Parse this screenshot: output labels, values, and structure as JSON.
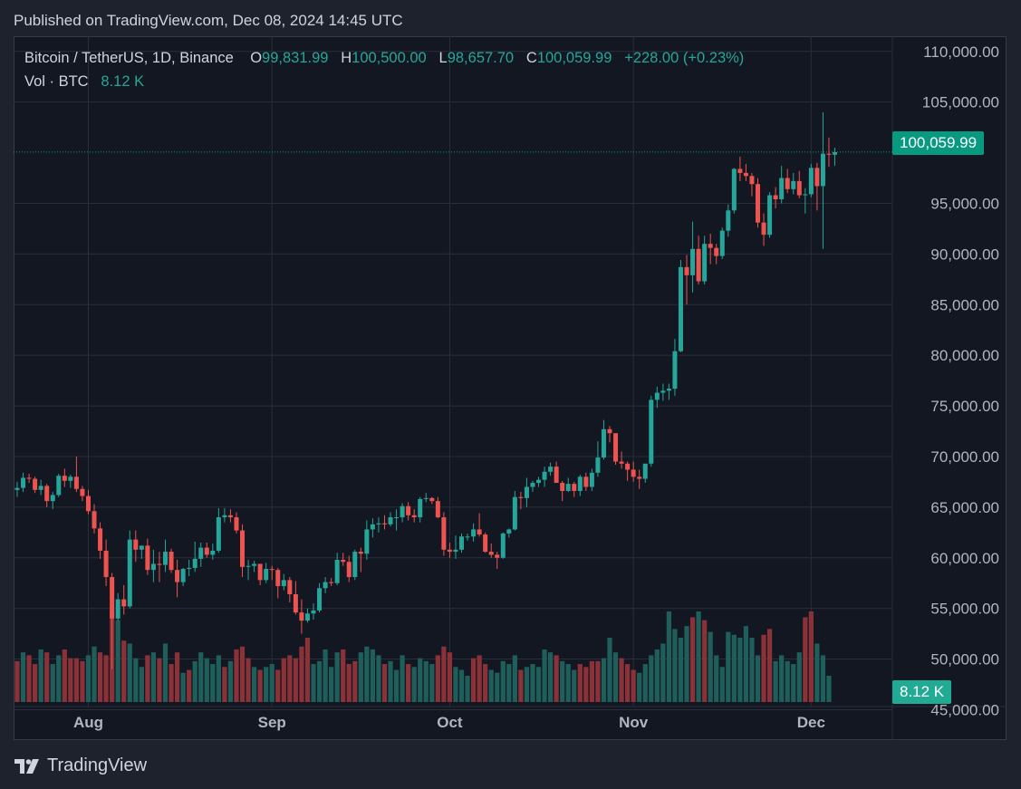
{
  "header": {
    "published": "Published on TradingView.com, Dec 08, 2024 14:45 UTC"
  },
  "legend": {
    "symbol": "Bitcoin / TetherUS, 1D, Binance",
    "o_label": "O",
    "o_value": "99,831.99",
    "h_label": "H",
    "h_value": "100,500.00",
    "l_label": "L",
    "l_value": "98,657.70",
    "c_label": "C",
    "c_value": "100,059.99",
    "change": "+228.00 (+0.23%)",
    "vol_label": "Vol · BTC",
    "vol_value": "8.12 K"
  },
  "tags": {
    "price": "100,059.99",
    "volume": "8.12 K"
  },
  "brand": {
    "name": "TradingView",
    "icon": "tradingview-logo-icon"
  },
  "colors": {
    "up": "#26a69a",
    "down": "#ef5350",
    "up_vol": "#1f5f5b",
    "down_vol": "#8b3238",
    "grid": "#2a2e39",
    "axis_text": "#b2b5be",
    "price_tag": "#089981",
    "background": "#131722"
  },
  "chart_data": {
    "type": "candlestick",
    "title": "Bitcoin / TetherUS, 1D, Binance",
    "ylim": [
      42000,
      111500
    ],
    "y_ticks": [
      {
        "value": 110000,
        "label": "110,000.00"
      },
      {
        "value": 105000,
        "label": "105,000.00"
      },
      {
        "value": 95000,
        "label": "95,000.00"
      },
      {
        "value": 90000,
        "label": "90,000.00"
      },
      {
        "value": 85000,
        "label": "85,000.00"
      },
      {
        "value": 80000,
        "label": "80,000.00"
      },
      {
        "value": 75000,
        "label": "75,000.00"
      },
      {
        "value": 70000,
        "label": "70,000.00"
      },
      {
        "value": 65000,
        "label": "65,000.00"
      },
      {
        "value": 60000,
        "label": "60,000.00"
      },
      {
        "value": 55000,
        "label": "55,000.00"
      },
      {
        "value": 50000,
        "label": "50,000.00"
      },
      {
        "value": 45000,
        "label": "45,000.00"
      }
    ],
    "x_ticks": [
      {
        "index": 12,
        "label": "Aug"
      },
      {
        "index": 43,
        "label": "Sep"
      },
      {
        "index": 73,
        "label": "Oct"
      },
      {
        "index": 104,
        "label": "Nov"
      },
      {
        "index": 134,
        "label": "Dec"
      }
    ],
    "last_price": 100059.99,
    "ohlc": [
      [
        66700,
        67500,
        66000,
        66900
      ],
      [
        66900,
        68400,
        66500,
        67900
      ],
      [
        67900,
        68300,
        67400,
        67800
      ],
      [
        67800,
        68000,
        66400,
        66700
      ],
      [
        66700,
        67700,
        66200,
        67100
      ],
      [
        67100,
        67300,
        65000,
        65600
      ],
      [
        65600,
        66500,
        64800,
        66200
      ],
      [
        66200,
        68300,
        66000,
        68100
      ],
      [
        68100,
        68800,
        67000,
        67600
      ],
      [
        67600,
        68200,
        66900,
        68000
      ],
      [
        68000,
        70000,
        66500,
        66800
      ],
      [
        66800,
        67100,
        65600,
        66100
      ],
      [
        66100,
        66700,
        64300,
        64600
      ],
      [
        64600,
        65300,
        62400,
        62900
      ],
      [
        62900,
        63500,
        59900,
        60700
      ],
      [
        60700,
        61800,
        57200,
        58100
      ],
      [
        58100,
        58500,
        49000,
        54000
      ],
      [
        54000,
        56500,
        53800,
        55900
      ],
      [
        55900,
        57300,
        54400,
        55200
      ],
      [
        55200,
        62700,
        55000,
        61800
      ],
      [
        61800,
        62700,
        59600,
        60800
      ],
      [
        60800,
        61200,
        59900,
        61200
      ],
      [
        61200,
        61900,
        58300,
        58800
      ],
      [
        58800,
        60800,
        57600,
        59400
      ],
      [
        59400,
        60600,
        57600,
        59300
      ],
      [
        59300,
        61800,
        58600,
        60600
      ],
      [
        60600,
        60900,
        58500,
        58800
      ],
      [
        58800,
        59800,
        56100,
        57600
      ],
      [
        57600,
        59000,
        57200,
        58900
      ],
      [
        58900,
        59800,
        58200,
        59000
      ],
      [
        59000,
        61600,
        58600,
        59900
      ],
      [
        59900,
        61500,
        59100,
        61000
      ],
      [
        61000,
        61500,
        60000,
        60300
      ],
      [
        60300,
        61400,
        59800,
        60700
      ],
      [
        60700,
        64900,
        60500,
        64000
      ],
      [
        64000,
        64900,
        63500,
        64200
      ],
      [
        64200,
        64800,
        63500,
        64000
      ],
      [
        64000,
        64500,
        62400,
        62700
      ],
      [
        62700,
        63300,
        58100,
        59100
      ],
      [
        59100,
        59800,
        57800,
        59200
      ],
      [
        59200,
        59700,
        58600,
        59400
      ],
      [
        59400,
        59400,
        57300,
        57800
      ],
      [
        57800,
        59500,
        57500,
        58900
      ],
      [
        58900,
        59200,
        57800,
        58800
      ],
      [
        58800,
        59000,
        56000,
        57200
      ],
      [
        57200,
        58400,
        56800,
        57800
      ],
      [
        57800,
        58100,
        55600,
        56400
      ],
      [
        56400,
        57700,
        54400,
        54600
      ],
      [
        54600,
        55900,
        52500,
        53800
      ],
      [
        53800,
        55000,
        53600,
        54500
      ],
      [
        54500,
        55500,
        53900,
        54800
      ],
      [
        54800,
        57500,
        54600,
        57000
      ],
      [
        57000,
        58100,
        56500,
        57600
      ],
      [
        57600,
        58000,
        57200,
        57500
      ],
      [
        57500,
        60500,
        57300,
        59800
      ],
      [
        59800,
        60500,
        59200,
        59600
      ],
      [
        59600,
        60200,
        57600,
        58100
      ],
      [
        58100,
        60800,
        57800,
        60600
      ],
      [
        60600,
        61000,
        58600,
        60400
      ],
      [
        60400,
        63700,
        59800,
        62800
      ],
      [
        62800,
        63900,
        62000,
        63300
      ],
      [
        63300,
        64000,
        62500,
        63400
      ],
      [
        63400,
        64200,
        62800,
        63300
      ],
      [
        63300,
        64500,
        63100,
        64000
      ],
      [
        64000,
        64800,
        62700,
        64000
      ],
      [
        64000,
        65400,
        63500,
        65100
      ],
      [
        65100,
        65500,
        63700,
        64200
      ],
      [
        64200,
        64800,
        63500,
        64000
      ],
      [
        64000,
        66000,
        63500,
        65800
      ],
      [
        65800,
        66400,
        65500,
        65900
      ],
      [
        65900,
        66000,
        65300,
        65600
      ],
      [
        65600,
        66000,
        63900,
        64000
      ],
      [
        64000,
        64500,
        60200,
        60800
      ],
      [
        60800,
        61500,
        60000,
        60600
      ],
      [
        60600,
        62200,
        59900,
        60800
      ],
      [
        60800,
        62400,
        60500,
        62100
      ],
      [
        62100,
        62400,
        61700,
        62100
      ],
      [
        62100,
        63400,
        61600,
        62800
      ],
      [
        62800,
        64400,
        62100,
        62300
      ],
      [
        62300,
        62500,
        60500,
        60600
      ],
      [
        60600,
        61400,
        60000,
        60300
      ],
      [
        60300,
        60600,
        58900,
        60000
      ],
      [
        60000,
        62500,
        59900,
        62400
      ],
      [
        62400,
        62900,
        62000,
        62800
      ],
      [
        62800,
        66600,
        62700,
        66000
      ],
      [
        66000,
        66500,
        64800,
        65900
      ],
      [
        65900,
        67900,
        65000,
        67000
      ],
      [
        67000,
        67600,
        66500,
        67400
      ],
      [
        67400,
        68000,
        67000,
        67700
      ],
      [
        67700,
        69000,
        67000,
        68500
      ],
      [
        68500,
        69400,
        68100,
        69000
      ],
      [
        69000,
        69500,
        67400,
        67400
      ],
      [
        67400,
        67600,
        65600,
        66600
      ],
      [
        66600,
        67900,
        66500,
        67300
      ],
      [
        67300,
        67500,
        66000,
        66600
      ],
      [
        66600,
        68200,
        66100,
        68000
      ],
      [
        68000,
        68400,
        66600,
        67000
      ],
      [
        67000,
        68800,
        66600,
        68400
      ],
      [
        68400,
        71500,
        68000,
        69900
      ],
      [
        69900,
        73600,
        69700,
        72700
      ],
      [
        72700,
        73000,
        71400,
        72300
      ],
      [
        72300,
        72300,
        69200,
        69500
      ],
      [
        69500,
        70500,
        68800,
        69300
      ],
      [
        69300,
        69500,
        67600,
        68700
      ],
      [
        68700,
        69500,
        67500,
        68000
      ],
      [
        68000,
        68700,
        66800,
        67800
      ],
      [
        67800,
        69200,
        67400,
        69300
      ],
      [
        69300,
        76000,
        69000,
        75600
      ],
      [
        75600,
        76900,
        74800,
        76300
      ],
      [
        76300,
        77200,
        75500,
        76500
      ],
      [
        76500,
        77200,
        75600,
        76700
      ],
      [
        76700,
        81600,
        76000,
        80400
      ],
      [
        80400,
        89400,
        80300,
        88700
      ],
      [
        88700,
        89900,
        85000,
        87900
      ],
      [
        87900,
        93200,
        86200,
        90500
      ],
      [
        90500,
        91800,
        87000,
        87300
      ],
      [
        87300,
        91800,
        87000,
        91000
      ],
      [
        91000,
        92000,
        89000,
        90600
      ],
      [
        90600,
        91000,
        89000,
        89800
      ],
      [
        89800,
        92600,
        89500,
        92300
      ],
      [
        92300,
        94900,
        91700,
        94300
      ],
      [
        94300,
        98500,
        94000,
        98400
      ],
      [
        98400,
        99600,
        97200,
        98000
      ],
      [
        98000,
        98900,
        97200,
        97700
      ],
      [
        97700,
        98000,
        95700,
        96900
      ],
      [
        96900,
        97500,
        92600,
        93100
      ],
      [
        93100,
        94000,
        90800,
        91900
      ],
      [
        91900,
        96100,
        91600,
        95800
      ],
      [
        95800,
        96600,
        94500,
        95400
      ],
      [
        95400,
        98700,
        95000,
        97500
      ],
      [
        97500,
        98400,
        96000,
        96400
      ],
      [
        96400,
        98000,
        95900,
        97200
      ],
      [
        97200,
        98200,
        95500,
        95800
      ],
      [
        95800,
        96500,
        94000,
        95900
      ],
      [
        95900,
        98900,
        95600,
        98500
      ],
      [
        98500,
        99000,
        94300,
        96700
      ],
      [
        96700,
        104000,
        90500,
        99900
      ],
      [
        99900,
        101500,
        98600,
        99800
      ],
      [
        99800,
        100500,
        98700,
        100060
      ]
    ],
    "volume": [
      [
        14,
        "d"
      ],
      [
        17,
        "u"
      ],
      [
        16,
        "d"
      ],
      [
        13,
        "d"
      ],
      [
        18,
        "u"
      ],
      [
        17,
        "d"
      ],
      [
        13,
        "u"
      ],
      [
        16,
        "u"
      ],
      [
        18,
        "d"
      ],
      [
        15,
        "d"
      ],
      [
        15,
        "d"
      ],
      [
        14,
        "d"
      ],
      [
        16,
        "u"
      ],
      [
        19,
        "u"
      ],
      [
        17,
        "d"
      ],
      [
        16,
        "d"
      ],
      [
        31,
        "d"
      ],
      [
        28,
        "u"
      ],
      [
        21,
        "d"
      ],
      [
        20,
        "u"
      ],
      [
        15,
        "u"
      ],
      [
        12,
        "u"
      ],
      [
        16,
        "d"
      ],
      [
        17,
        "u"
      ],
      [
        15,
        "d"
      ],
      [
        20,
        "u"
      ],
      [
        13,
        "d"
      ],
      [
        17,
        "d"
      ],
      [
        10,
        "u"
      ],
      [
        11,
        "d"
      ],
      [
        14,
        "u"
      ],
      [
        17,
        "u"
      ],
      [
        15,
        "u"
      ],
      [
        13,
        "u"
      ],
      [
        16,
        "u"
      ],
      [
        12,
        "d"
      ],
      [
        14,
        "u"
      ],
      [
        18,
        "d"
      ],
      [
        19,
        "d"
      ],
      [
        15,
        "d"
      ],
      [
        12,
        "u"
      ],
      [
        11,
        "d"
      ],
      [
        12,
        "u"
      ],
      [
        13,
        "u"
      ],
      [
        11,
        "d"
      ],
      [
        15,
        "d"
      ],
      [
        16,
        "d"
      ],
      [
        15,
        "d"
      ],
      [
        19,
        "d"
      ],
      [
        22,
        "d"
      ],
      [
        13,
        "u"
      ],
      [
        14,
        "u"
      ],
      [
        18,
        "u"
      ],
      [
        12,
        "u"
      ],
      [
        17,
        "u"
      ],
      [
        18,
        "d"
      ],
      [
        13,
        "d"
      ],
      [
        14,
        "d"
      ],
      [
        17,
        "u"
      ],
      [
        19,
        "u"
      ],
      [
        18,
        "u"
      ],
      [
        16,
        "u"
      ],
      [
        13,
        "d"
      ],
      [
        14,
        "u"
      ],
      [
        11,
        "u"
      ],
      [
        16,
        "u"
      ],
      [
        13,
        "d"
      ],
      [
        12,
        "u"
      ],
      [
        15,
        "u"
      ],
      [
        14,
        "u"
      ],
      [
        13,
        "u"
      ],
      [
        16,
        "d"
      ],
      [
        19,
        "d"
      ],
      [
        17,
        "d"
      ],
      [
        12,
        "u"
      ],
      [
        11,
        "u"
      ],
      [
        9,
        "u"
      ],
      [
        15,
        "d"
      ],
      [
        16,
        "d"
      ],
      [
        13,
        "d"
      ],
      [
        11,
        "u"
      ],
      [
        10,
        "u"
      ],
      [
        14,
        "u"
      ],
      [
        13,
        "u"
      ],
      [
        16,
        "u"
      ],
      [
        11,
        "d"
      ],
      [
        12,
        "u"
      ],
      [
        13,
        "u"
      ],
      [
        12,
        "u"
      ],
      [
        18,
        "u"
      ],
      [
        17,
        "u"
      ],
      [
        16,
        "d"
      ],
      [
        14,
        "u"
      ],
      [
        13,
        "u"
      ],
      [
        11,
        "u"
      ],
      [
        13,
        "d"
      ],
      [
        12,
        "d"
      ],
      [
        14,
        "d"
      ],
      [
        14,
        "d"
      ],
      [
        15,
        "u"
      ],
      [
        22,
        "u"
      ],
      [
        17,
        "u"
      ],
      [
        15,
        "d"
      ],
      [
        13,
        "d"
      ],
      [
        11,
        "d"
      ],
      [
        10,
        "u"
      ],
      [
        13,
        "u"
      ],
      [
        16,
        "u"
      ],
      [
        18,
        "u"
      ],
      [
        20,
        "u"
      ],
      [
        31,
        "u"
      ],
      [
        25,
        "u"
      ],
      [
        22,
        "u"
      ],
      [
        26,
        "u"
      ],
      [
        29,
        "d"
      ],
      [
        31,
        "u"
      ],
      [
        28,
        "d"
      ],
      [
        24,
        "u"
      ],
      [
        16,
        "u"
      ],
      [
        12,
        "u"
      ],
      [
        24,
        "u"
      ],
      [
        23,
        "u"
      ],
      [
        22,
        "u"
      ],
      [
        26,
        "u"
      ],
      [
        22,
        "u"
      ],
      [
        16,
        "u"
      ],
      [
        23,
        "d"
      ],
      [
        25,
        "d"
      ],
      [
        14,
        "u"
      ],
      [
        16,
        "u"
      ],
      [
        14,
        "u"
      ],
      [
        13,
        "u"
      ],
      [
        17,
        "u"
      ],
      [
        29,
        "d"
      ],
      [
        31,
        "d"
      ],
      [
        20,
        "u"
      ],
      [
        16,
        "u"
      ],
      [
        9,
        "u"
      ]
    ]
  }
}
